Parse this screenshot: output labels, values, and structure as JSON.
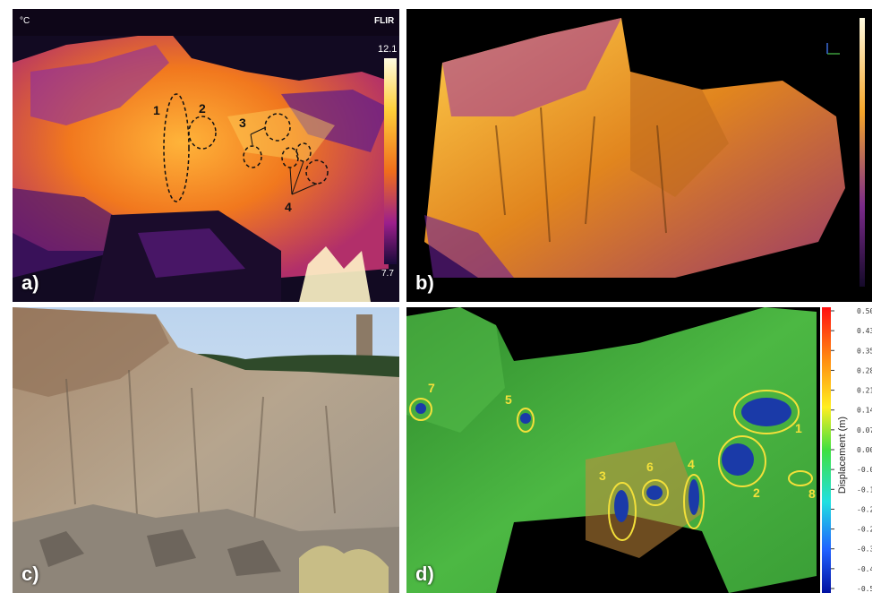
{
  "panels": {
    "a": {
      "label": "a)",
      "unit": "°C",
      "brand": "FLIR",
      "scale_max": "12.1",
      "scale_min": "7.7",
      "annotations": [
        "1",
        "2",
        "3",
        "4"
      ]
    },
    "b": {
      "label": "b)"
    },
    "c": {
      "label": "c)"
    },
    "d": {
      "label": "d)",
      "colorbar_title": "Displacement (m)",
      "ticks": [
        "0.500",
        "0.430",
        "0.357",
        "0.287",
        "0.214",
        "0.144",
        "0.071",
        "0.001",
        "-0.069",
        "-0.141",
        "-0.211",
        "-0.284",
        "-0.354",
        "-0.427",
        "-0.500"
      ],
      "annotations": [
        "1",
        "2",
        "3",
        "4",
        "5",
        "6",
        "7",
        "8"
      ]
    }
  },
  "colors": {
    "ironbow_hot": "#ffd54a",
    "ironbow_mid": "#f07a1e",
    "ironbow_cool": "#7a1fa0",
    "displacement_green": "#3fae3a",
    "annotation_yellow": "#f3e03a"
  }
}
